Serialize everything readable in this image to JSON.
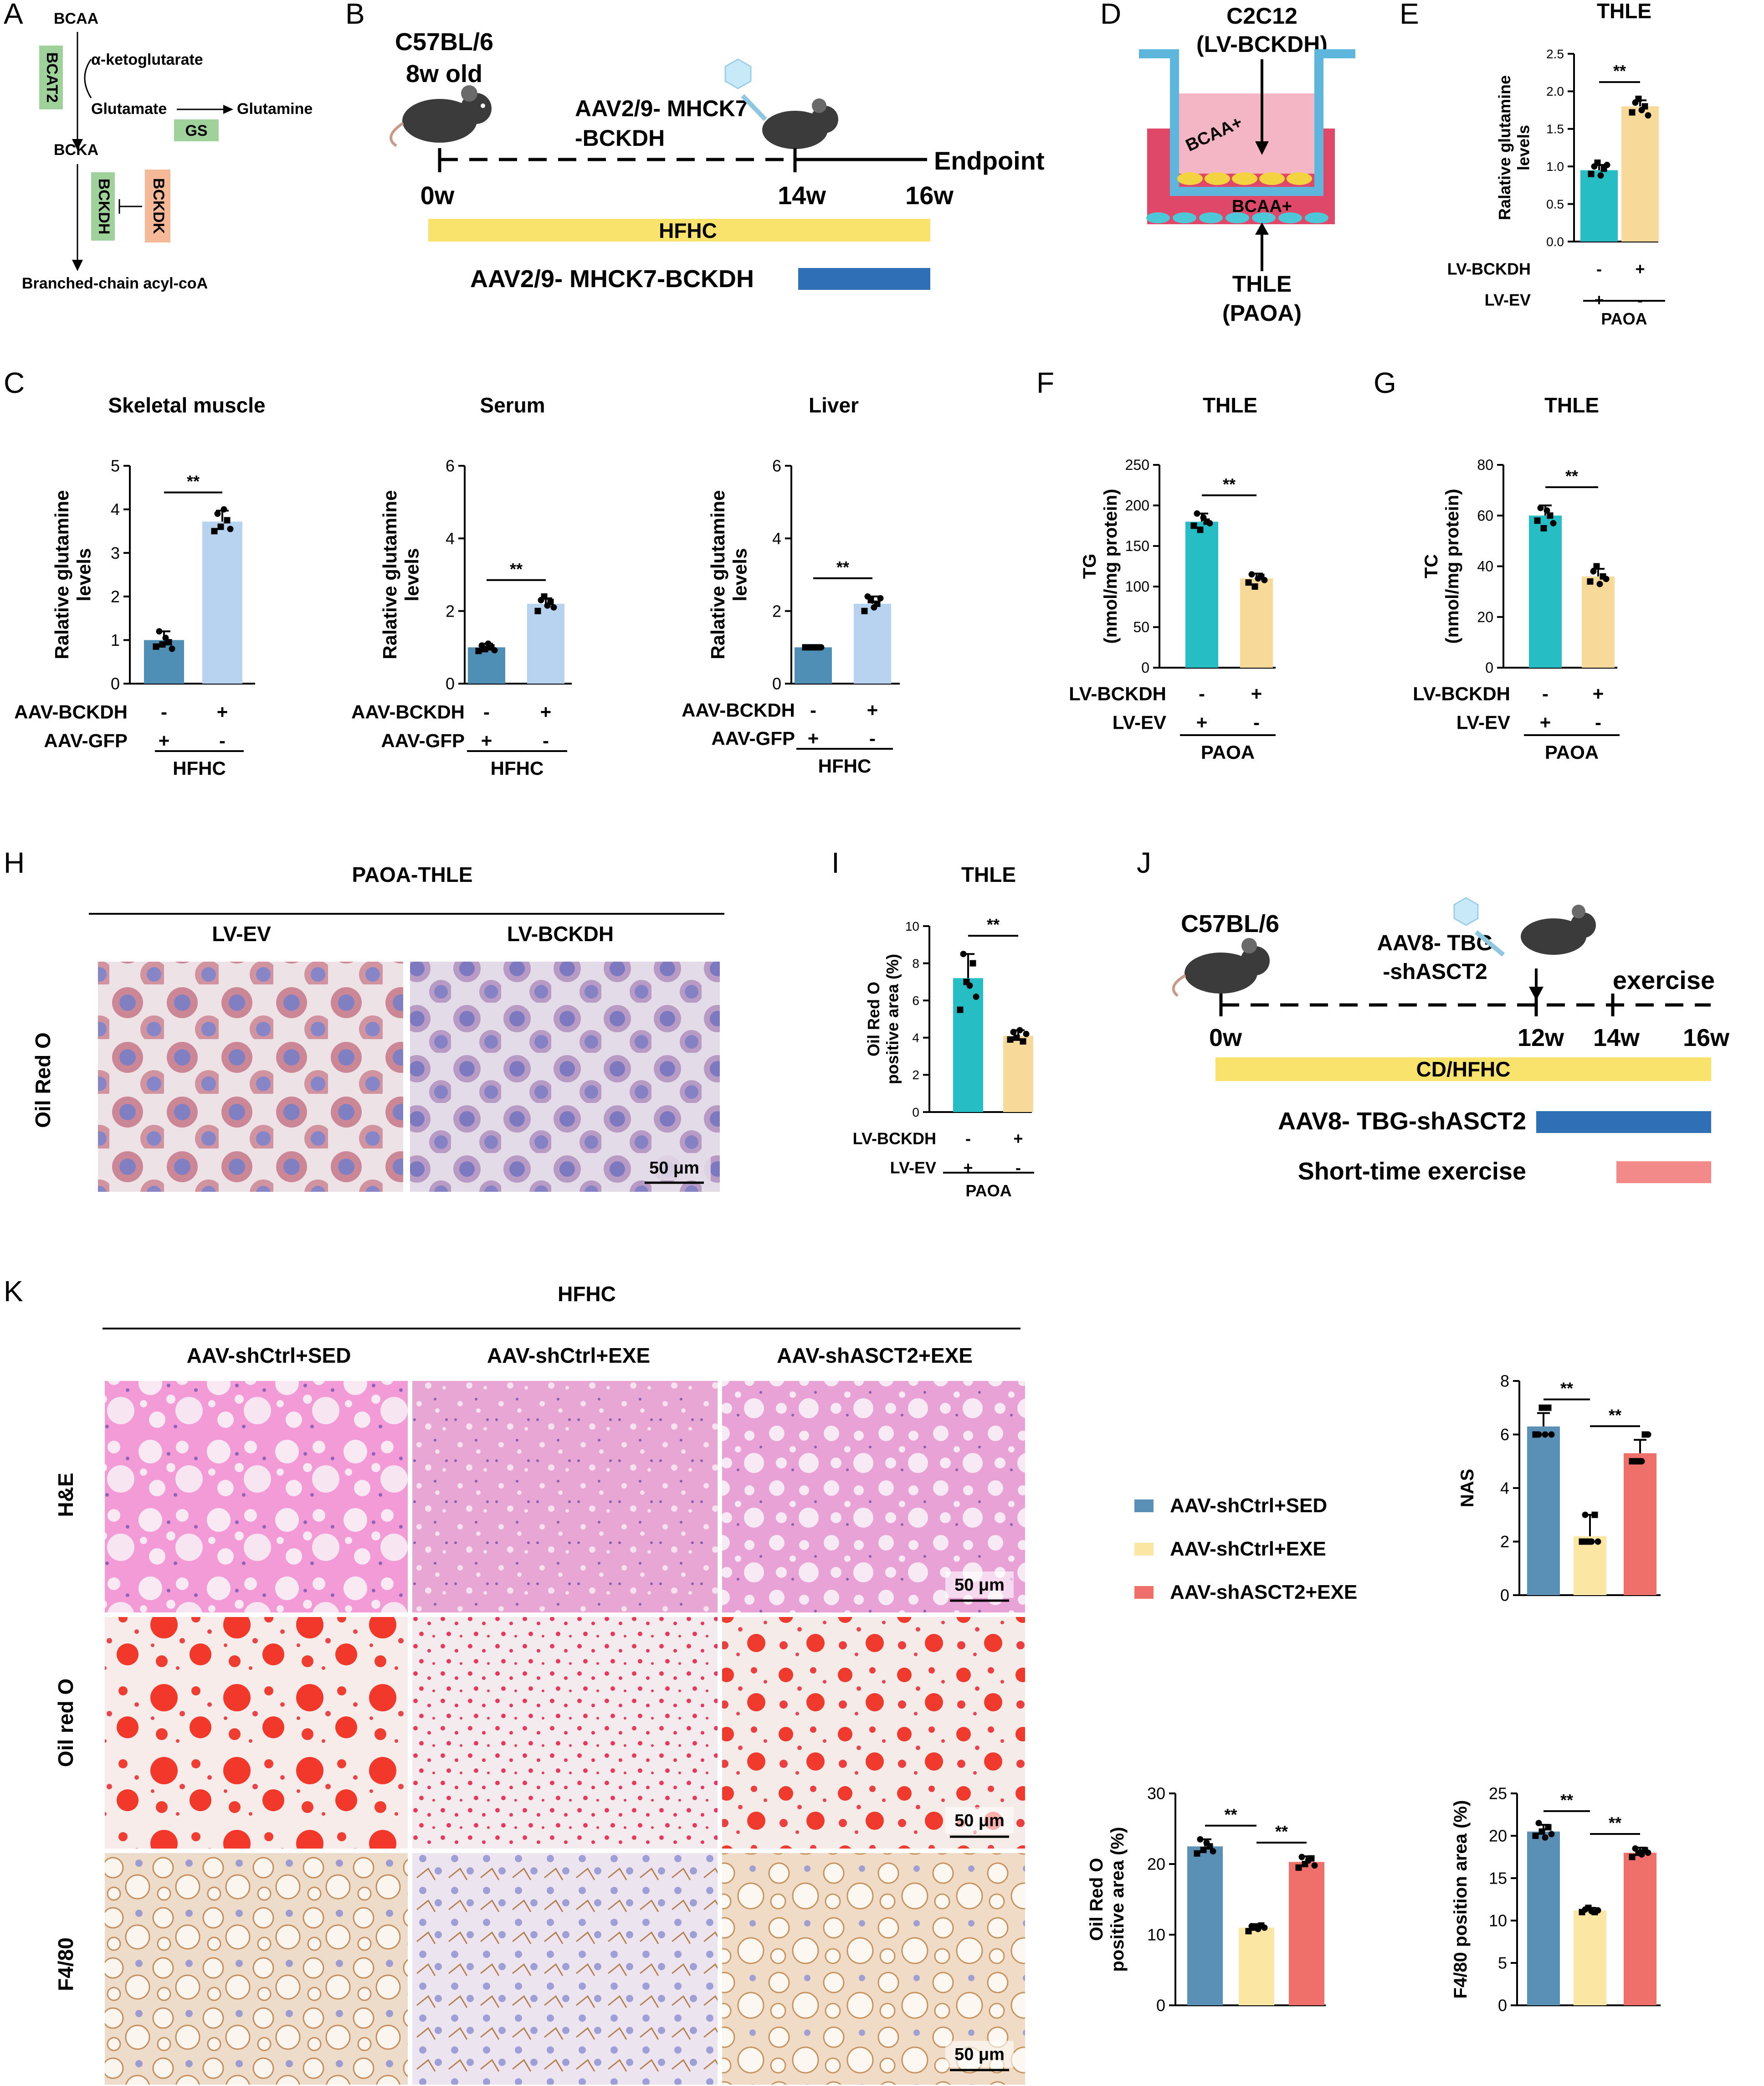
{
  "colors": {
    "teal": "#26bec4",
    "lightblue": "#b8d3ef",
    "steel": "#4f8eb5",
    "wheat": "#f7d999",
    "steelK": "#5a90b6",
    "yellowK": "#fbe6a4",
    "coralK": "#ef6f6a",
    "hfhc": "#fae36c",
    "aav": "#2f6fb5",
    "exercise": "#f28a8a"
  },
  "panels": {
    "A": "A",
    "B": "B",
    "C": "C",
    "D": "D",
    "E": "E",
    "F": "F",
    "G": "G",
    "H": "H",
    "I": "I",
    "J": "J",
    "K": "K"
  },
  "panelA": {
    "bcaa": "BCAA",
    "bcat2": "BCAT2",
    "akg": "α-ketoglutarate",
    "glutamate": "Glutamate",
    "glutamine": "Glutamine",
    "gs": "GS",
    "bcka": "BCKA",
    "bckdh": "BCKDH",
    "bckdk": "BCKDK",
    "product": "Branched-chain acyl-coA"
  },
  "panelB": {
    "strain": "C57BL/6",
    "age": "8w old",
    "virus1": "AAV2/9- MHCK7",
    "virus2": "-BCKDH",
    "t0": "0w",
    "t14": "14w",
    "t16": "16w",
    "endpoint": "Endpoint",
    "diet": "HFHC",
    "bar_label": "AAV2/9- MHCK7-BCKDH"
  },
  "panelD": {
    "cell_top": "C2C12",
    "cell_top2": "(LV-BCKDH)",
    "bcaa_upper": "BCAA+",
    "bcaa_lower": "BCAA+",
    "cell_bottom": "THLE",
    "cell_bottom2": "(PAOA)"
  },
  "panelH": {
    "title": "PAOA-THLE",
    "col1": "LV-EV",
    "col2": "LV-BCKDH",
    "row": "Oil Red O",
    "scale": "50 μm"
  },
  "panelJ": {
    "strain": "C57BL/6",
    "virus1": "AAV8- TBG",
    "virus2": "-shASCT2",
    "t0": "0w",
    "t12": "12w",
    "t14": "14w",
    "t16": "16w",
    "exercise": "exercise",
    "diet": "CD/HFHC",
    "bar1": "AAV8- TBG-shASCT2",
    "bar2": "Short-time exercise"
  },
  "panelK": {
    "title": "HFHC",
    "cols": [
      "AAV-shCtrl+SED",
      "AAV-shCtrl+EXE",
      "AAV-shASCT2+EXE"
    ],
    "rows": [
      "H&E",
      "Oil red O",
      "F4/80"
    ],
    "scale": "50 μm",
    "legend": [
      "AAV-shCtrl+SED",
      "AAV-shCtrl+EXE",
      "AAV-shASCT2+EXE"
    ]
  },
  "sig": "**",
  "chart_data": [
    {
      "id": "E",
      "type": "bar",
      "title": "THLE",
      "ylabel": "Ralative glutamine levels",
      "ylim": [
        0,
        2.5
      ],
      "yticks": [
        "0.0",
        "0.5",
        "1.0",
        "1.5",
        "2.0",
        "2.5"
      ],
      "categories": [
        "LV-EV",
        "LV-BCKDH"
      ],
      "values": [
        0.95,
        1.8
      ],
      "errors": [
        0.07,
        0.08
      ],
      "points": [
        [
          0.9,
          1.0,
          1.05,
          0.88,
          0.97,
          1.02
        ],
        [
          1.72,
          1.85,
          1.9,
          1.75,
          1.8,
          1.68
        ]
      ],
      "rowlabels": [
        "LV-BCKDH",
        "LV-EV"
      ],
      "signs": [
        [
          "-",
          "+"
        ],
        [
          "+",
          "-"
        ]
      ],
      "group": "PAOA"
    },
    {
      "id": "C1",
      "type": "bar",
      "title": "Skeletal muscle",
      "ylabel": "Ralative glutamine levels",
      "ylim": [
        0,
        5
      ],
      "yticks": [
        "0",
        "1",
        "2",
        "3",
        "4",
        "5"
      ],
      "categories": [
        "AAV-GFP",
        "AAV-BCKDH"
      ],
      "values": [
        1.0,
        3.72
      ],
      "errors": [
        0.2,
        0.25
      ],
      "points": [
        [
          0.85,
          1.2,
          0.9,
          1.05,
          0.95,
          0.8
        ],
        [
          3.5,
          3.9,
          3.6,
          4.0,
          3.75,
          3.55
        ]
      ],
      "rowlabels": [
        "AAV-BCKDH",
        "AAV-GFP"
      ],
      "signs": [
        [
          "-",
          "+"
        ],
        [
          "+",
          "-"
        ]
      ],
      "group": "HFHC"
    },
    {
      "id": "C2",
      "type": "bar",
      "title": "Serum",
      "ylabel": "Ralative glutamine levels",
      "ylim": [
        0,
        6
      ],
      "yticks": [
        "0",
        "2",
        "4",
        "6"
      ],
      "categories": [
        "AAV-GFP",
        "AAV-BCKDH"
      ],
      "values": [
        1.0,
        2.2
      ],
      "errors": [
        0.1,
        0.15
      ],
      "points": [
        [
          0.9,
          1.05,
          0.95,
          1.1,
          1.0,
          0.92
        ],
        [
          2.0,
          2.3,
          2.4,
          2.15,
          2.25,
          2.1
        ]
      ],
      "rowlabels": [
        "AAV-BCKDH",
        "AAV-GFP"
      ],
      "signs": [
        [
          "-",
          "+"
        ],
        [
          "+",
          "-"
        ]
      ],
      "group": "HFHC"
    },
    {
      "id": "C3",
      "type": "bar",
      "title": "Liver",
      "ylabel": "Ralative glutamine levels",
      "ylim": [
        0,
        6
      ],
      "yticks": [
        "0",
        "2",
        "4",
        "6"
      ],
      "categories": [
        "AAV-GFP",
        "AAV-BCKDH"
      ],
      "values": [
        1.0,
        2.2
      ],
      "errors": [
        0.05,
        0.2
      ],
      "points": [
        [
          1.0,
          1.0,
          1.0,
          1.0,
          1.0,
          1.0
        ],
        [
          2.0,
          2.4,
          2.3,
          2.1,
          2.2,
          2.35
        ]
      ],
      "rowlabels": [
        "AAV-BCKDH",
        "AAV-GFP"
      ],
      "signs": [
        [
          "-",
          "+"
        ],
        [
          "+",
          "-"
        ]
      ],
      "group": "HFHC"
    },
    {
      "id": "F",
      "type": "bar",
      "title": "THLE",
      "ylabel": "TG",
      "ylabel2": "(nmol/mg protein)",
      "ylim": [
        0,
        250
      ],
      "yticks": [
        "0",
        "50",
        "100",
        "150",
        "200",
        "250"
      ],
      "categories": [
        "LV-EV",
        "LV-BCKDH"
      ],
      "values": [
        180,
        110
      ],
      "errors": [
        10,
        6
      ],
      "points": [
        [
          175,
          190,
          170,
          185,
          180,
          178
        ],
        [
          105,
          115,
          100,
          110,
          112,
          108
        ]
      ],
      "rowlabels": [
        "LV-BCKDH",
        "LV-EV"
      ],
      "signs": [
        [
          "-",
          "+"
        ],
        [
          "+",
          "-"
        ]
      ],
      "group": "PAOA"
    },
    {
      "id": "G",
      "type": "bar",
      "title": "THLE",
      "ylabel": "TC",
      "ylabel2": "(nmol/mg protein)",
      "ylim": [
        0,
        80
      ],
      "yticks": [
        "0",
        "20",
        "40",
        "60",
        "80"
      ],
      "categories": [
        "LV-EV",
        "LV-BCKDH"
      ],
      "values": [
        60,
        36
      ],
      "errors": [
        4,
        3
      ],
      "points": [
        [
          58,
          63,
          55,
          62,
          60,
          57
        ],
        [
          34,
          38,
          40,
          33,
          36,
          35
        ]
      ],
      "rowlabels": [
        "LV-BCKDH",
        "LV-EV"
      ],
      "signs": [
        [
          "-",
          "+"
        ],
        [
          "+",
          "-"
        ]
      ],
      "group": "PAOA"
    },
    {
      "id": "I",
      "type": "bar",
      "title": "THLE",
      "ylabel": "Oil Red O",
      "ylabel2": "positive area (%)",
      "ylim": [
        0,
        10
      ],
      "yticks": [
        "0",
        "2",
        "4",
        "6",
        "8",
        "10"
      ],
      "categories": [
        "LV-EV",
        "LV-BCKDH"
      ],
      "values": [
        7.2,
        4.1
      ],
      "errors": [
        1.3,
        0.3
      ],
      "points": [
        [
          5.5,
          8.5,
          7.0,
          6.8,
          8.0,
          6.2
        ],
        [
          3.9,
          4.3,
          4.0,
          4.4,
          3.8,
          4.2
        ]
      ],
      "rowlabels": [
        "LV-BCKDH",
        "LV-EV"
      ],
      "signs": [
        [
          "-",
          "+"
        ],
        [
          "+",
          "-"
        ]
      ],
      "group": "PAOA"
    },
    {
      "id": "K1",
      "type": "bar",
      "title": "",
      "ylabel": "NAS",
      "ylim": [
        0,
        8
      ],
      "yticks": [
        "0",
        "2",
        "4",
        "6",
        "8"
      ],
      "categories": [
        "AAV-shCtrl+SED",
        "AAV-shCtrl+EXE",
        "AAV-shASCT2+EXE"
      ],
      "values": [
        6.3,
        2.2,
        5.3
      ],
      "errors": [
        0.5,
        0.8,
        0.5
      ],
      "points": [
        [
          6,
          6,
          7,
          6,
          7,
          6
        ],
        [
          2,
          3,
          2,
          2,
          3,
          2
        ],
        [
          5,
          5,
          5,
          5,
          6,
          6
        ]
      ]
    },
    {
      "id": "K2",
      "type": "bar",
      "title": "",
      "ylabel": "Oil Red O",
      "ylabel2": "positive area (%)",
      "ylim": [
        0,
        30
      ],
      "yticks": [
        "0",
        "10",
        "20",
        "30"
      ],
      "categories": [
        "AAV-shCtrl+SED",
        "AAV-shCtrl+EXE",
        "AAV-shASCT2+EXE"
      ],
      "values": [
        22.5,
        11.0,
        20.3
      ],
      "errors": [
        1.0,
        0.5,
        0.8
      ],
      "points": [
        [
          21.5,
          23.5,
          22,
          23,
          22.5,
          21.8
        ],
        [
          10.5,
          11.2,
          11,
          10.8,
          11.3,
          11
        ],
        [
          19.5,
          21,
          20,
          20.5,
          20.8,
          19.8
        ]
      ]
    },
    {
      "id": "K3",
      "type": "bar",
      "title": "",
      "ylabel": "F4/80 position area (%)",
      "ylim": [
        0,
        25
      ],
      "yticks": [
        "0",
        "5",
        "10",
        "15",
        "20",
        "25"
      ],
      "categories": [
        "AAV-shCtrl+SED",
        "AAV-shCtrl+EXE",
        "AAV-shASCT2+EXE"
      ],
      "values": [
        20.5,
        11.2,
        18.0
      ],
      "errors": [
        0.8,
        0.3,
        0.6
      ],
      "points": [
        [
          20,
          21.5,
          20.5,
          19.8,
          21,
          20.2
        ],
        [
          11,
          11.3,
          11.5,
          11.1,
          11,
          11.2
        ],
        [
          17.5,
          18.5,
          18,
          17.8,
          18.3,
          18
        ]
      ]
    }
  ]
}
